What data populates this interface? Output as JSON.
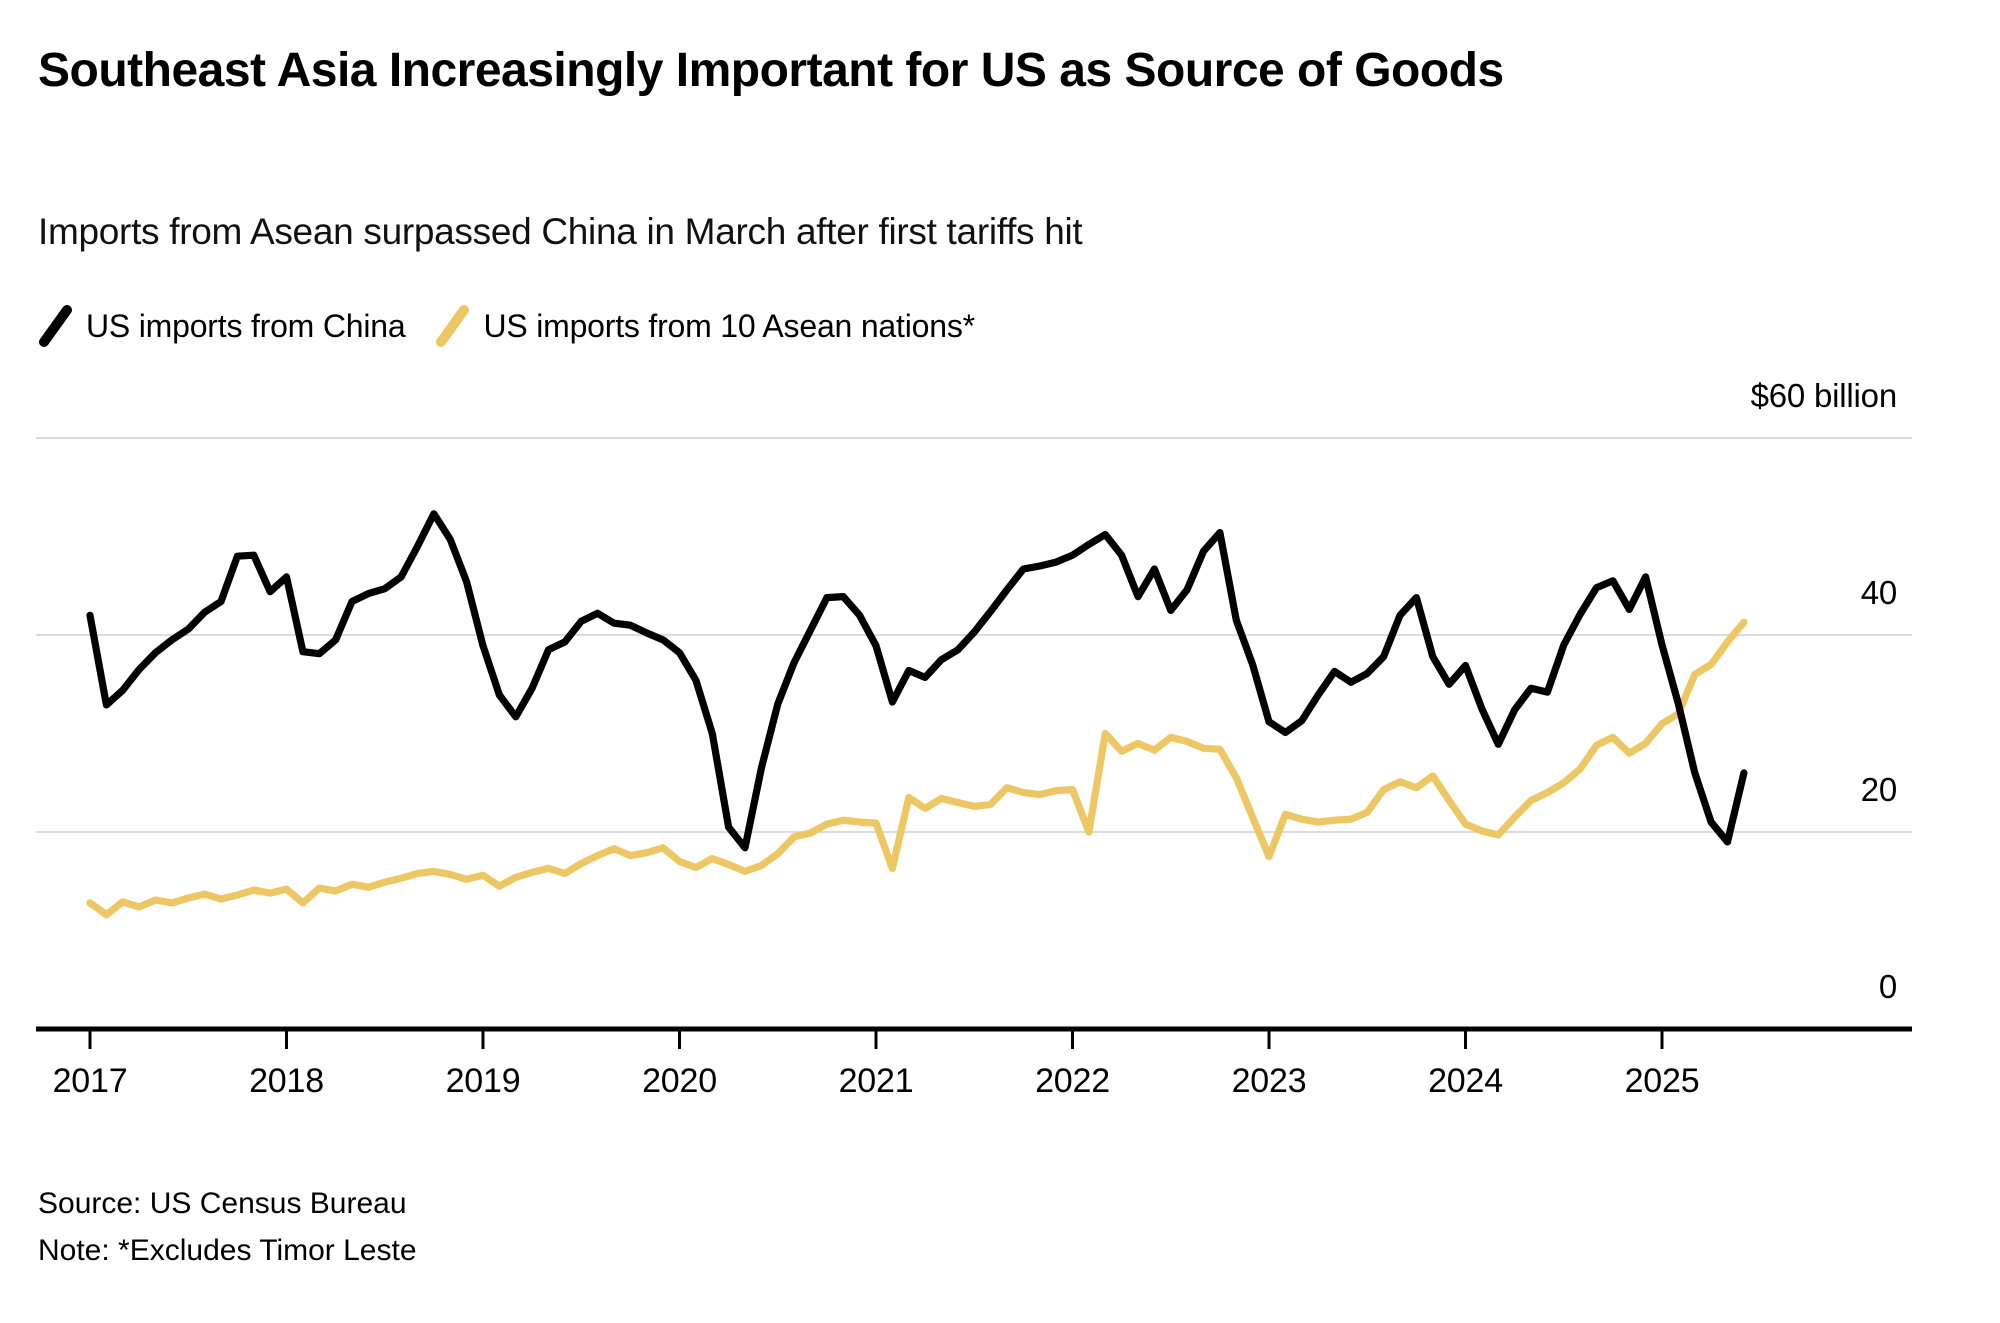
{
  "header": {
    "title": "Southeast Asia Increasingly Important for US as Source of Goods",
    "subtitle": "Imports from Asean surpassed China in March after first tariffs hit"
  },
  "legend": [
    {
      "label": "US imports from China",
      "color": "#000000"
    },
    {
      "label": "US imports from 10 Asean nations*",
      "color": "#ECC763"
    }
  ],
  "footer": {
    "source": "Source: US Census Bureau",
    "note": "Note: *Excludes Timor Leste"
  },
  "colors": {
    "china_line": "#000000",
    "asean_line": "#ECC763",
    "gridline": "#DCDCDC",
    "axis": "#000000"
  },
  "chart_data": {
    "type": "line",
    "title": "Southeast Asia Increasingly Important for US as Source of Goods",
    "subtitle": "Imports from Asean surpassed China in March after first tariffs hit",
    "xlabel": "",
    "ylabel": "$ billion",
    "x_unit": "month",
    "x_start": "2017-01",
    "x_end": "2025-06",
    "x_tick_years": [
      2017,
      2018,
      2019,
      2020,
      2021,
      2022,
      2023,
      2024,
      2025
    ],
    "ylim": [
      0,
      60
    ],
    "grid": true,
    "gridline_values": [
      20,
      40,
      60
    ],
    "legend_position": "top-left",
    "y_axis_ticks": [
      {
        "value": 60,
        "label": "$60 billion"
      },
      {
        "value": 40,
        "label": "40"
      },
      {
        "value": 20,
        "label": "20"
      },
      {
        "value": 0,
        "label": "0"
      }
    ],
    "series": [
      {
        "name": "US imports from China",
        "color": "#000000",
        "values": [
          42.0,
          32.9,
          34.4,
          36.5,
          38.2,
          39.5,
          40.6,
          42.3,
          43.4,
          48.0,
          48.1,
          44.4,
          45.9,
          38.3,
          38.1,
          39.5,
          43.4,
          44.2,
          44.7,
          45.9,
          49.0,
          52.3,
          49.7,
          45.4,
          38.9,
          33.9,
          31.7,
          34.6,
          38.5,
          39.3,
          41.4,
          42.2,
          41.2,
          41.0,
          40.2,
          39.5,
          38.2,
          35.4,
          30.0,
          20.5,
          18.4,
          26.5,
          33.0,
          37.2,
          40.5,
          43.8,
          43.9,
          42.0,
          38.9,
          33.2,
          36.4,
          35.7,
          37.5,
          38.5,
          40.3,
          42.4,
          44.6,
          46.7,
          47.0,
          47.4,
          48.1,
          49.2,
          50.2,
          48.1,
          43.9,
          46.7,
          42.5,
          44.6,
          48.5,
          50.4,
          41.5,
          37.0,
          31.2,
          30.1,
          31.3,
          33.9,
          36.3,
          35.2,
          36.1,
          37.8,
          42.0,
          43.8,
          37.8,
          35.0,
          36.9,
          32.5,
          28.9,
          32.4,
          34.6,
          34.2,
          39.0,
          42.1,
          44.8,
          45.5,
          42.6,
          45.9,
          39.0,
          33.0,
          26.0,
          21.0,
          19.0,
          26.0
        ]
      },
      {
        "name": "US imports from 10 Asean nations*",
        "color": "#ECC763",
        "values": [
          12.8,
          11.6,
          12.9,
          12.4,
          13.1,
          12.8,
          13.3,
          13.7,
          13.2,
          13.6,
          14.1,
          13.8,
          14.2,
          12.8,
          14.3,
          14.0,
          14.7,
          14.4,
          14.9,
          15.3,
          15.8,
          16.0,
          15.7,
          15.2,
          15.6,
          14.5,
          15.4,
          15.9,
          16.3,
          15.8,
          16.8,
          17.6,
          18.3,
          17.6,
          17.9,
          18.4,
          17.0,
          16.4,
          17.3,
          16.7,
          16.0,
          16.6,
          17.8,
          19.5,
          19.9,
          20.8,
          21.2,
          21.0,
          20.9,
          16.3,
          23.5,
          22.4,
          23.4,
          23.0,
          22.6,
          22.8,
          24.5,
          24.0,
          23.8,
          24.2,
          24.3,
          20.0,
          30.0,
          28.2,
          29.0,
          28.3,
          29.6,
          29.2,
          28.5,
          28.4,
          25.5,
          21.5,
          17.5,
          21.8,
          21.3,
          21.0,
          21.2,
          21.3,
          22.0,
          24.3,
          25.1,
          24.5,
          25.7,
          23.2,
          20.8,
          20.1,
          19.7,
          21.5,
          23.2,
          24.0,
          25.0,
          26.4,
          28.8,
          29.6,
          28.0,
          29.0,
          31.0,
          32.0,
          36.0,
          37.0,
          39.3,
          41.3
        ]
      }
    ]
  }
}
